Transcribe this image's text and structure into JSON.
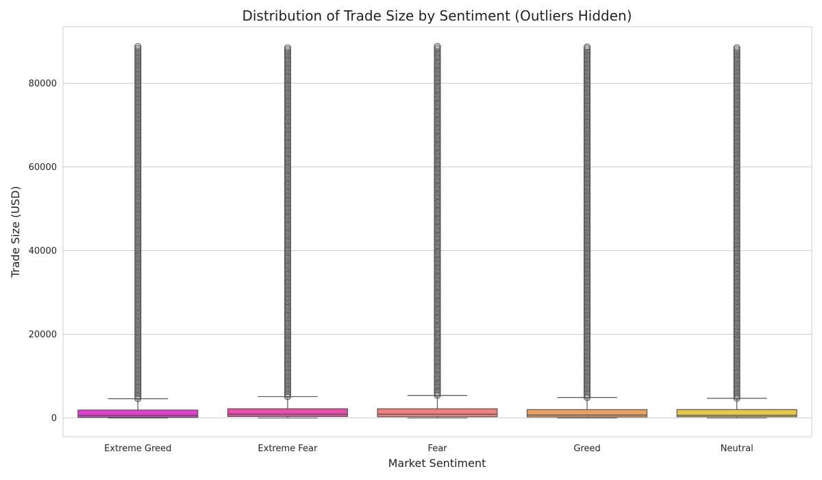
{
  "chart_data": {
    "type": "box",
    "title": "Distribution of Trade Size by Sentiment (Outliers Hidden)",
    "xlabel": "Market Sentiment",
    "ylabel": "Trade Size (USD)",
    "ylim": [
      -4500,
      93500
    ],
    "yticks": [
      0,
      20000,
      40000,
      60000,
      80000
    ],
    "grid": "horizontal",
    "categories": [
      "Extreme Greed",
      "Extreme Fear",
      "Fear",
      "Greed",
      "Neutral"
    ],
    "colors": [
      "#e23fd0",
      "#e94faa",
      "#f08080",
      "#eaa060",
      "#e6c84a"
    ],
    "boxes": [
      {
        "category": "Extreme Greed",
        "min": 0,
        "q1": 150,
        "median": 600,
        "q3": 1900,
        "whisker_high": 4600,
        "outlier_min": 4600,
        "outlier_max": 88800
      },
      {
        "category": "Extreme Fear",
        "min": 0,
        "q1": 350,
        "median": 900,
        "q3": 2200,
        "whisker_high": 5100,
        "outlier_min": 5100,
        "outlier_max": 88800
      },
      {
        "category": "Fear",
        "min": 0,
        "q1": 300,
        "median": 900,
        "q3": 2200,
        "whisker_high": 5400,
        "outlier_min": 5400,
        "outlier_max": 88800
      },
      {
        "category": "Greed",
        "min": 0,
        "q1": 250,
        "median": 700,
        "q3": 2000,
        "whisker_high": 4900,
        "outlier_min": 4900,
        "outlier_max": 88800
      },
      {
        "category": "Neutral",
        "min": 0,
        "q1": 300,
        "median": 650,
        "q3": 2000,
        "whisker_high": 4700,
        "outlier_min": 4700,
        "outlier_max": 88600
      }
    ]
  }
}
